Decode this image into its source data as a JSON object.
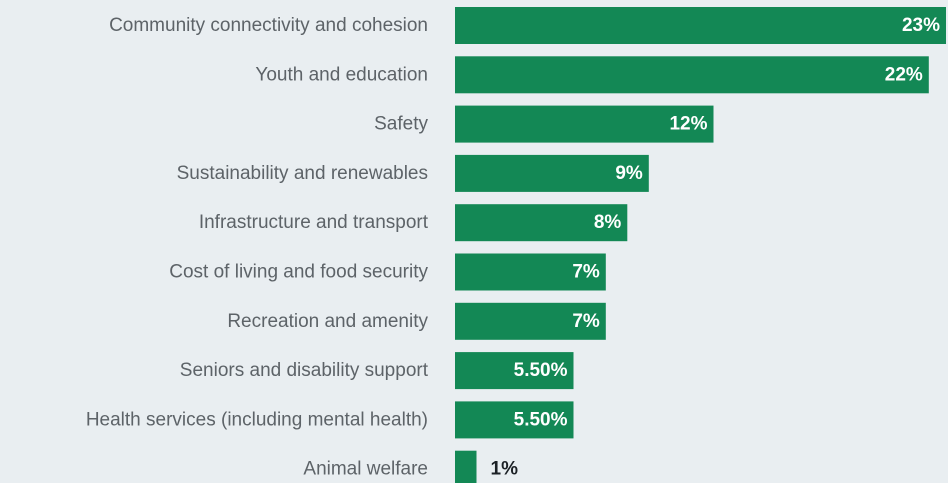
{
  "chart_data": {
    "type": "bar",
    "orientation": "horizontal",
    "title": "",
    "xlabel": "",
    "ylabel": "",
    "categories": [
      "Community connectivity and cohesion",
      "Youth and education",
      "Safety",
      "Sustainability and renewables",
      "Infrastructure and transport",
      "Cost of living and food security",
      "Recreation and amenity",
      "Seniors and disability support",
      "Health services (including mental health)",
      "Animal welfare"
    ],
    "values": [
      23,
      22,
      12,
      9,
      8,
      7,
      7,
      5.5,
      5.5,
      1
    ],
    "value_labels": [
      "23%",
      "22%",
      "12%",
      "9%",
      "8%",
      "7%",
      "7%",
      "5.50%",
      "5.50%",
      "1%"
    ],
    "xlim": [
      0,
      22.1
    ],
    "grid": false,
    "legend": "none",
    "colors": {
      "bar": "#138855",
      "background": "#e9eef1",
      "category_text": "#5d6368",
      "label_inside": "#ffffff",
      "label_outside": "#1c2126"
    }
  }
}
